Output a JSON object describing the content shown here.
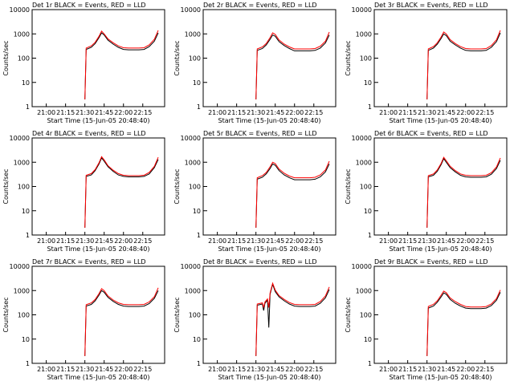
{
  "chart_data": [
    {
      "type": "line",
      "title": "Det 1r BLACK = Events, RED = LLD",
      "xlabel": "Start Time (15-Jun-05 20:48:40)",
      "ylabel": "Counts/sec",
      "log_y": true,
      "xlim": [
        "20:49",
        "22:32"
      ],
      "ylim": [
        1,
        10000
      ],
      "xticks": [
        "21:00",
        "21:15",
        "21:30",
        "21:45",
        "22:00",
        "22:15"
      ],
      "yticks": [
        1,
        10,
        100,
        1000,
        10000
      ],
      "x": [
        "21:30",
        "21:31",
        "21:35",
        "21:38",
        "21:41",
        "21:43",
        "21:45",
        "21:48",
        "21:52",
        "21:56",
        "22:00",
        "22:04",
        "22:08",
        "22:12",
        "22:16",
        "22:20",
        "22:24",
        "22:27"
      ],
      "series": [
        {
          "name": "Events",
          "color": "#000000",
          "values": [
            2,
            230,
            280,
            400,
            700,
            1100,
            900,
            550,
            380,
            280,
            230,
            220,
            220,
            220,
            230,
            300,
            500,
            1100
          ]
        },
        {
          "name": "LLD",
          "color": "#ff0000",
          "values": [
            2,
            260,
            320,
            450,
            800,
            1300,
            1000,
            620,
            430,
            320,
            270,
            260,
            260,
            260,
            270,
            350,
            600,
            1400
          ]
        }
      ]
    },
    {
      "type": "line",
      "title": "Det 2r BLACK = Events, RED = LLD",
      "xlabel": "Start Time (15-Jun-05 20:48:40)",
      "ylabel": "Counts/sec",
      "log_y": true,
      "xlim": [
        "20:49",
        "22:32"
      ],
      "ylim": [
        1,
        10000
      ],
      "xticks": [
        "21:00",
        "21:15",
        "21:30",
        "21:45",
        "22:00",
        "22:15"
      ],
      "yticks": [
        1,
        10,
        100,
        1000,
        10000
      ],
      "x": [
        "21:30",
        "21:31",
        "21:35",
        "21:38",
        "21:41",
        "21:43",
        "21:45",
        "21:48",
        "21:52",
        "21:56",
        "22:00",
        "22:04",
        "22:08",
        "22:12",
        "22:16",
        "22:20",
        "22:24",
        "22:27"
      ],
      "series": [
        {
          "name": "Events",
          "color": "#000000",
          "values": [
            2,
            210,
            250,
            350,
            600,
            900,
            800,
            480,
            330,
            250,
            200,
            200,
            200,
            200,
            210,
            260,
            420,
            900
          ]
        },
        {
          "name": "LLD",
          "color": "#ff0000",
          "values": [
            2,
            240,
            290,
            400,
            700,
            1100,
            950,
            560,
            380,
            290,
            240,
            240,
            240,
            240,
            250,
            310,
            500,
            1200
          ]
        }
      ]
    },
    {
      "type": "line",
      "title": "Det 3r BLACK = Events, RED = LLD",
      "xlabel": "Start Time (15-Jun-05 20:48:40)",
      "ylabel": "Counts/sec",
      "log_y": true,
      "xlim": [
        "20:49",
        "22:32"
      ],
      "ylim": [
        1,
        10000
      ],
      "xticks": [
        "21:00",
        "21:15",
        "21:30",
        "21:45",
        "22:00",
        "22:15"
      ],
      "yticks": [
        1,
        10,
        100,
        1000,
        10000
      ],
      "x": [
        "21:30",
        "21:31",
        "21:35",
        "21:38",
        "21:41",
        "21:43",
        "21:45",
        "21:48",
        "21:52",
        "21:56",
        "22:00",
        "22:04",
        "22:08",
        "22:12",
        "22:16",
        "22:20",
        "22:24",
        "22:27"
      ],
      "series": [
        {
          "name": "Events",
          "color": "#000000",
          "values": [
            2,
            210,
            260,
            380,
            650,
            1000,
            850,
            500,
            350,
            260,
            210,
            200,
            200,
            200,
            210,
            280,
            480,
            1100
          ]
        },
        {
          "name": "LLD",
          "color": "#ff0000",
          "values": [
            2,
            240,
            300,
            430,
            750,
            1200,
            1000,
            580,
            400,
            300,
            250,
            240,
            240,
            240,
            250,
            330,
            570,
            1400
          ]
        }
      ]
    },
    {
      "type": "line",
      "title": "Det 4r BLACK = Events, RED = LLD",
      "xlabel": "Start Time (15-Jun-05 20:48:40)",
      "ylabel": "Counts/sec",
      "log_y": true,
      "xlim": [
        "20:49",
        "22:32"
      ],
      "ylim": [
        1,
        10000
      ],
      "xticks": [
        "21:00",
        "21:15",
        "21:30",
        "21:45",
        "22:00",
        "22:15"
      ],
      "yticks": [
        1,
        10,
        100,
        1000,
        10000
      ],
      "x": [
        "21:30",
        "21:31",
        "21:35",
        "21:38",
        "21:41",
        "21:43",
        "21:45",
        "21:48",
        "21:52",
        "21:56",
        "22:00",
        "22:04",
        "22:08",
        "22:12",
        "22:16",
        "22:20",
        "22:24",
        "22:27"
      ],
      "series": [
        {
          "name": "Events",
          "color": "#000000",
          "values": [
            2,
            260,
            300,
            450,
            850,
            1500,
            1100,
            650,
            420,
            300,
            260,
            250,
            250,
            250,
            260,
            330,
            600,
            1300
          ]
        },
        {
          "name": "LLD",
          "color": "#ff0000",
          "values": [
            2,
            290,
            340,
            500,
            950,
            1700,
            1250,
            720,
            470,
            340,
            290,
            280,
            280,
            280,
            290,
            380,
            680,
            1600
          ]
        }
      ]
    },
    {
      "type": "line",
      "title": "Det 5r BLACK = Events, RED = LLD",
      "xlabel": "Start Time (15-Jun-05 20:48:40)",
      "ylabel": "Counts/sec",
      "log_y": true,
      "xlim": [
        "20:49",
        "22:32"
      ],
      "ylim": [
        1,
        10000
      ],
      "xticks": [
        "21:00",
        "21:15",
        "21:30",
        "21:45",
        "22:00",
        "22:15"
      ],
      "yticks": [
        1,
        10,
        100,
        1000,
        10000
      ],
      "x": [
        "21:30",
        "21:31",
        "21:35",
        "21:38",
        "21:41",
        "21:43",
        "21:45",
        "21:48",
        "21:52",
        "21:56",
        "22:00",
        "22:04",
        "22:08",
        "22:12",
        "22:16",
        "22:20",
        "22:24",
        "22:27"
      ],
      "series": [
        {
          "name": "Events",
          "color": "#000000",
          "values": [
            2,
            200,
            240,
            330,
            550,
            850,
            750,
            450,
            300,
            230,
            190,
            190,
            190,
            190,
            200,
            250,
            400,
            850
          ]
        },
        {
          "name": "LLD",
          "color": "#ff0000",
          "values": [
            2,
            230,
            280,
            380,
            650,
            1000,
            880,
            520,
            350,
            270,
            230,
            230,
            230,
            230,
            240,
            300,
            480,
            1100
          ]
        }
      ]
    },
    {
      "type": "line",
      "title": "Det 6r BLACK = Events, RED = LLD",
      "xlabel": "Start Time (15-Jun-05 20:48:40)",
      "ylabel": "Counts/sec",
      "log_y": true,
      "xlim": [
        "20:49",
        "22:32"
      ],
      "ylim": [
        1,
        10000
      ],
      "xticks": [
        "21:00",
        "21:15",
        "21:30",
        "21:45",
        "22:00",
        "22:15"
      ],
      "yticks": [
        1,
        10,
        100,
        1000,
        10000
      ],
      "x": [
        "21:30",
        "21:31",
        "21:35",
        "21:38",
        "21:41",
        "21:43",
        "21:45",
        "21:48",
        "21:52",
        "21:56",
        "22:00",
        "22:04",
        "22:08",
        "22:12",
        "22:16",
        "22:20",
        "22:24",
        "22:27"
      ],
      "series": [
        {
          "name": "Events",
          "color": "#000000",
          "values": [
            2,
            250,
            290,
            420,
            800,
            1400,
            1000,
            600,
            400,
            290,
            250,
            240,
            240,
            240,
            250,
            320,
            550,
            1200
          ]
        },
        {
          "name": "LLD",
          "color": "#ff0000",
          "values": [
            2,
            280,
            330,
            480,
            900,
            1600,
            1150,
            680,
            450,
            330,
            290,
            280,
            280,
            280,
            290,
            370,
            640,
            1500
          ]
        }
      ]
    },
    {
      "type": "line",
      "title": "Det 7r BLACK = Events, RED = LLD",
      "xlabel": "Start Time (15-Jun-05 20:48:40)",
      "ylabel": "Counts/sec",
      "log_y": true,
      "xlim": [
        "20:49",
        "22:32"
      ],
      "ylim": [
        1,
        10000
      ],
      "xticks": [
        "21:00",
        "21:15",
        "21:30",
        "21:45",
        "22:00",
        "22:15"
      ],
      "yticks": [
        1,
        10,
        100,
        1000,
        10000
      ],
      "x": [
        "21:30",
        "21:31",
        "21:35",
        "21:38",
        "21:41",
        "21:43",
        "21:45",
        "21:48",
        "21:52",
        "21:56",
        "22:00",
        "22:04",
        "22:08",
        "22:12",
        "22:16",
        "22:20",
        "22:24",
        "22:27"
      ],
      "series": [
        {
          "name": "Events",
          "color": "#000000",
          "values": [
            2,
            230,
            270,
            380,
            650,
            1000,
            850,
            520,
            360,
            270,
            230,
            220,
            220,
            220,
            230,
            290,
            480,
            1000
          ]
        },
        {
          "name": "LLD",
          "color": "#ff0000",
          "values": [
            2,
            260,
            310,
            430,
            750,
            1200,
            1000,
            600,
            410,
            310,
            270,
            260,
            260,
            260,
            270,
            340,
            560,
            1300
          ]
        }
      ]
    },
    {
      "type": "line",
      "title": "Det 8r BLACK = Events, RED = LLD",
      "xlabel": "Start Time (15-Jun-05 20:48:40)",
      "ylabel": "Counts/sec",
      "log_y": true,
      "xlim": [
        "20:49",
        "22:32"
      ],
      "ylim": [
        1,
        10000
      ],
      "xticks": [
        "21:00",
        "21:15",
        "21:30",
        "21:45",
        "22:00",
        "22:15"
      ],
      "yticks": [
        1,
        10,
        100,
        1000,
        10000
      ],
      "x": [
        "21:30",
        "21:31",
        "21:35",
        "21:36",
        "21:37",
        "21:39",
        "21:40",
        "21:41",
        "21:43",
        "21:45",
        "21:48",
        "21:52",
        "21:56",
        "22:00",
        "22:04",
        "22:08",
        "22:12",
        "22:16",
        "22:20",
        "22:24",
        "22:27"
      ],
      "series": [
        {
          "name": "Events",
          "color": "#000000",
          "values": [
            2,
            250,
            280,
            150,
            300,
            400,
            30,
            700,
            1800,
            900,
            550,
            380,
            280,
            230,
            220,
            220,
            220,
            230,
            300,
            500,
            1100
          ]
        },
        {
          "name": "LLD",
          "color": "#ff0000",
          "values": [
            2,
            280,
            310,
            200,
            340,
            450,
            200,
            800,
            2000,
            1050,
            620,
            430,
            320,
            270,
            260,
            260,
            260,
            270,
            350,
            600,
            1400
          ]
        }
      ]
    },
    {
      "type": "line",
      "title": "Det 9r BLACK = Events, RED = LLD",
      "xlabel": "Start Time (15-Jun-05 20:48:40)",
      "ylabel": "Counts/sec",
      "log_y": true,
      "xlim": [
        "20:49",
        "22:32"
      ],
      "ylim": [
        1,
        10000
      ],
      "xticks": [
        "21:00",
        "21:15",
        "21:30",
        "21:45",
        "22:00",
        "22:15"
      ],
      "yticks": [
        1,
        10,
        100,
        1000,
        10000
      ],
      "x": [
        "21:30",
        "21:31",
        "21:35",
        "21:38",
        "21:41",
        "21:43",
        "21:45",
        "21:48",
        "21:52",
        "21:56",
        "22:00",
        "22:04",
        "22:08",
        "22:12",
        "22:16",
        "22:20",
        "22:24",
        "22:27"
      ],
      "series": [
        {
          "name": "Events",
          "color": "#000000",
          "values": [
            2,
            190,
            230,
            330,
            550,
            800,
            700,
            430,
            300,
            230,
            190,
            180,
            180,
            180,
            190,
            240,
            400,
            850
          ]
        },
        {
          "name": "LLD",
          "color": "#ff0000",
          "values": [
            2,
            220,
            270,
            380,
            650,
            950,
            820,
            500,
            350,
            270,
            220,
            210,
            210,
            210,
            220,
            280,
            470,
            1050
          ]
        }
      ]
    }
  ]
}
